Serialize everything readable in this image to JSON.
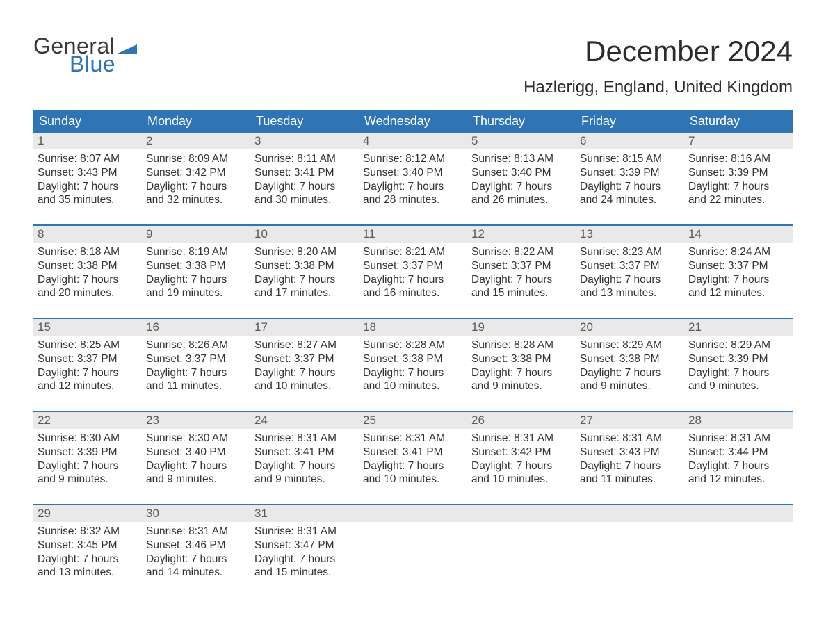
{
  "brand": {
    "word1": "General",
    "word2": "Blue",
    "text_color": "#3a3a3a",
    "accent_color": "#2f74b5"
  },
  "title": "December 2024",
  "location": "Hazlerigg, England, United Kingdom",
  "colors": {
    "header_bg": "#2f74b5",
    "header_text": "#ffffff",
    "daynum_bg": "#e9e9e9",
    "daynum_text": "#5a5a5a",
    "row_border": "#2f74b5",
    "body_text": "#333333",
    "page_bg": "#ffffff"
  },
  "typography": {
    "title_fontsize": 42,
    "subtitle_fontsize": 24,
    "header_fontsize": 18,
    "daynum_fontsize": 17,
    "body_fontsize": 15.5,
    "font_family": "Arial"
  },
  "weekdays": [
    "Sunday",
    "Monday",
    "Tuesday",
    "Wednesday",
    "Thursday",
    "Friday",
    "Saturday"
  ],
  "labels": {
    "sunrise": "Sunrise:",
    "sunset": "Sunset:",
    "daylight": "Daylight:"
  },
  "weeks": [
    [
      {
        "n": "1",
        "sunrise": "8:07 AM",
        "sunset": "3:43 PM",
        "dl1": "7 hours",
        "dl2": "and 35 minutes."
      },
      {
        "n": "2",
        "sunrise": "8:09 AM",
        "sunset": "3:42 PM",
        "dl1": "7 hours",
        "dl2": "and 32 minutes."
      },
      {
        "n": "3",
        "sunrise": "8:11 AM",
        "sunset": "3:41 PM",
        "dl1": "7 hours",
        "dl2": "and 30 minutes."
      },
      {
        "n": "4",
        "sunrise": "8:12 AM",
        "sunset": "3:40 PM",
        "dl1": "7 hours",
        "dl2": "and 28 minutes."
      },
      {
        "n": "5",
        "sunrise": "8:13 AM",
        "sunset": "3:40 PM",
        "dl1": "7 hours",
        "dl2": "and 26 minutes."
      },
      {
        "n": "6",
        "sunrise": "8:15 AM",
        "sunset": "3:39 PM",
        "dl1": "7 hours",
        "dl2": "and 24 minutes."
      },
      {
        "n": "7",
        "sunrise": "8:16 AM",
        "sunset": "3:39 PM",
        "dl1": "7 hours",
        "dl2": "and 22 minutes."
      }
    ],
    [
      {
        "n": "8",
        "sunrise": "8:18 AM",
        "sunset": "3:38 PM",
        "dl1": "7 hours",
        "dl2": "and 20 minutes."
      },
      {
        "n": "9",
        "sunrise": "8:19 AM",
        "sunset": "3:38 PM",
        "dl1": "7 hours",
        "dl2": "and 19 minutes."
      },
      {
        "n": "10",
        "sunrise": "8:20 AM",
        "sunset": "3:38 PM",
        "dl1": "7 hours",
        "dl2": "and 17 minutes."
      },
      {
        "n": "11",
        "sunrise": "8:21 AM",
        "sunset": "3:37 PM",
        "dl1": "7 hours",
        "dl2": "and 16 minutes."
      },
      {
        "n": "12",
        "sunrise": "8:22 AM",
        "sunset": "3:37 PM",
        "dl1": "7 hours",
        "dl2": "and 15 minutes."
      },
      {
        "n": "13",
        "sunrise": "8:23 AM",
        "sunset": "3:37 PM",
        "dl1": "7 hours",
        "dl2": "and 13 minutes."
      },
      {
        "n": "14",
        "sunrise": "8:24 AM",
        "sunset": "3:37 PM",
        "dl1": "7 hours",
        "dl2": "and 12 minutes."
      }
    ],
    [
      {
        "n": "15",
        "sunrise": "8:25 AM",
        "sunset": "3:37 PM",
        "dl1": "7 hours",
        "dl2": "and 12 minutes."
      },
      {
        "n": "16",
        "sunrise": "8:26 AM",
        "sunset": "3:37 PM",
        "dl1": "7 hours",
        "dl2": "and 11 minutes."
      },
      {
        "n": "17",
        "sunrise": "8:27 AM",
        "sunset": "3:37 PM",
        "dl1": "7 hours",
        "dl2": "and 10 minutes."
      },
      {
        "n": "18",
        "sunrise": "8:28 AM",
        "sunset": "3:38 PM",
        "dl1": "7 hours",
        "dl2": "and 10 minutes."
      },
      {
        "n": "19",
        "sunrise": "8:28 AM",
        "sunset": "3:38 PM",
        "dl1": "7 hours",
        "dl2": "and 9 minutes."
      },
      {
        "n": "20",
        "sunrise": "8:29 AM",
        "sunset": "3:38 PM",
        "dl1": "7 hours",
        "dl2": "and 9 minutes."
      },
      {
        "n": "21",
        "sunrise": "8:29 AM",
        "sunset": "3:39 PM",
        "dl1": "7 hours",
        "dl2": "and 9 minutes."
      }
    ],
    [
      {
        "n": "22",
        "sunrise": "8:30 AM",
        "sunset": "3:39 PM",
        "dl1": "7 hours",
        "dl2": "and 9 minutes."
      },
      {
        "n": "23",
        "sunrise": "8:30 AM",
        "sunset": "3:40 PM",
        "dl1": "7 hours",
        "dl2": "and 9 minutes."
      },
      {
        "n": "24",
        "sunrise": "8:31 AM",
        "sunset": "3:41 PM",
        "dl1": "7 hours",
        "dl2": "and 9 minutes."
      },
      {
        "n": "25",
        "sunrise": "8:31 AM",
        "sunset": "3:41 PM",
        "dl1": "7 hours",
        "dl2": "and 10 minutes."
      },
      {
        "n": "26",
        "sunrise": "8:31 AM",
        "sunset": "3:42 PM",
        "dl1": "7 hours",
        "dl2": "and 10 minutes."
      },
      {
        "n": "27",
        "sunrise": "8:31 AM",
        "sunset": "3:43 PM",
        "dl1": "7 hours",
        "dl2": "and 11 minutes."
      },
      {
        "n": "28",
        "sunrise": "8:31 AM",
        "sunset": "3:44 PM",
        "dl1": "7 hours",
        "dl2": "and 12 minutes."
      }
    ],
    [
      {
        "n": "29",
        "sunrise": "8:32 AM",
        "sunset": "3:45 PM",
        "dl1": "7 hours",
        "dl2": "and 13 minutes."
      },
      {
        "n": "30",
        "sunrise": "8:31 AM",
        "sunset": "3:46 PM",
        "dl1": "7 hours",
        "dl2": "and 14 minutes."
      },
      {
        "n": "31",
        "sunrise": "8:31 AM",
        "sunset": "3:47 PM",
        "dl1": "7 hours",
        "dl2": "and 15 minutes."
      },
      null,
      null,
      null,
      null
    ]
  ]
}
